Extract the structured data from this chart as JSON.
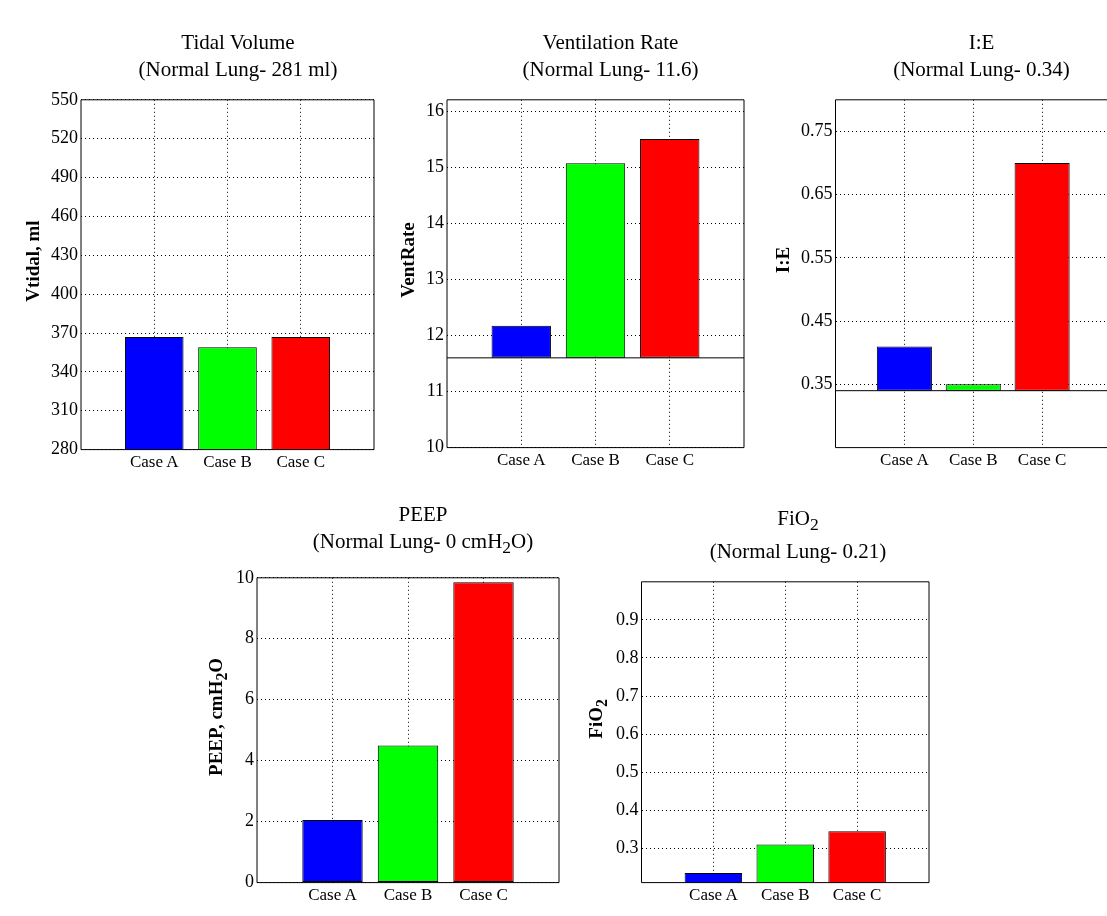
{
  "chart_data": [
    {
      "type": "bar",
      "title": "Tidal Volume",
      "subtitle": "(Normal Lung- 281 ml)",
      "ylabel": "Vtidal, ml",
      "categories": [
        "Case A",
        "Case B",
        "Case C"
      ],
      "colors": [
        "#0000ff",
        "#00ff00",
        "#ff0000"
      ],
      "values": [
        367,
        359,
        367
      ],
      "ylim": [
        280,
        550
      ],
      "yticks": [
        280,
        310,
        340,
        370,
        400,
        430,
        460,
        490,
        520,
        550
      ],
      "grid": true
    },
    {
      "type": "bar",
      "title": "Ventilation Rate",
      "subtitle": "(Normal Lung- 11.6)",
      "ylabel": "VentRate",
      "categories": [
        "Case A",
        "Case B",
        "Case C"
      ],
      "colors": [
        "#0000ff",
        "#00ff00",
        "#ff0000"
      ],
      "base": [
        11.6,
        11.6,
        11.6
      ],
      "values": [
        0.57,
        3.47,
        3.9
      ],
      "ylim": [
        10,
        16.2
      ],
      "yticks": [
        10,
        11,
        12,
        13,
        14,
        15,
        16
      ],
      "grid": true,
      "ref_lines": [
        {
          "axis": "y",
          "value": 11.6,
          "color": "#000000"
        }
      ]
    },
    {
      "type": "bar",
      "title": "I:E",
      "subtitle": "(Normal Lung- 0.34)",
      "ylabel": "I:E",
      "categories": [
        "Case A",
        "Case B",
        "Case C"
      ],
      "colors": [
        "#0000ff",
        "#00ff00",
        "#ff0000"
      ],
      "base": [
        0.34,
        0.34,
        0.34
      ],
      "values": [
        0.07,
        0.01,
        0.36
      ],
      "ylim": [
        0.25,
        0.8
      ],
      "yticks": [
        0.35,
        0.45,
        0.55,
        0.65,
        0.75
      ],
      "grid": true,
      "ref_lines": [
        {
          "axis": "y",
          "value": 0.34,
          "color": "#000000"
        }
      ]
    },
    {
      "type": "bar",
      "title": "PEEP",
      "subtitle": "(Normal Lung- 0 cmH$_{2}$O)",
      "ylabel": "PEEP, cmH$_{2}$O",
      "categories": [
        "Case A",
        "Case B",
        "Case C"
      ],
      "colors": [
        "#0000ff",
        "#00ff00",
        "#ff0000"
      ],
      "values": [
        2.05,
        4.5,
        9.85
      ],
      "ylim": [
        0,
        10
      ],
      "yticks": [
        0,
        2,
        4,
        6,
        8,
        10
      ],
      "grid": true
    },
    {
      "type": "bar",
      "title": "FiO$_{2}$",
      "subtitle": "(Normal Lung- 0.21)",
      "ylabel": "FiO$_{2}$",
      "categories": [
        "Case A",
        "Case B",
        "Case C"
      ],
      "colors": [
        "#0000ff",
        "#00ff00",
        "#ff0000"
      ],
      "values": [
        0.235,
        0.31,
        0.345
      ],
      "ylim": [
        0.21,
        1.0
      ],
      "yticks": [
        0.3,
        0.4,
        0.5,
        0.6,
        0.7,
        0.8,
        0.9
      ],
      "grid": true
    }
  ]
}
